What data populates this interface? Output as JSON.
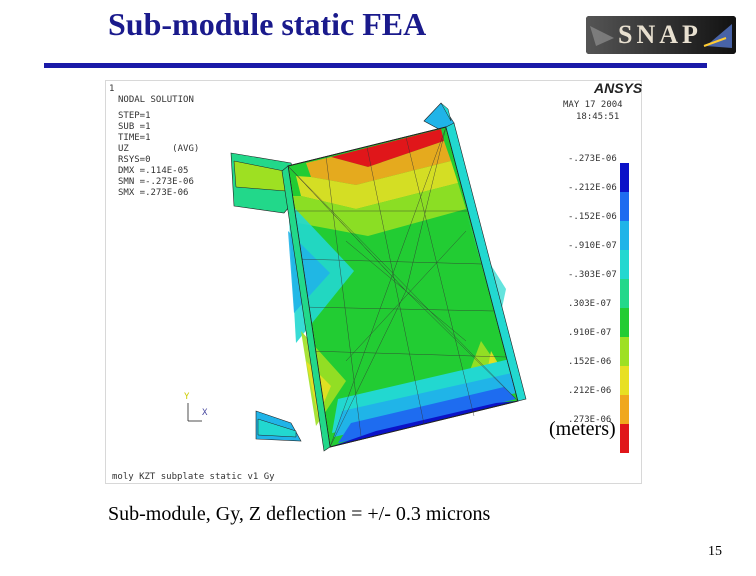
{
  "slide": {
    "title": "Sub-module static FEA",
    "caption": "Sub-module, Gy, Z deflection = +/- 0.3 microns",
    "page_number": "15",
    "units_label": "(meters)"
  },
  "logo": {
    "text": "SNAP"
  },
  "ansys": {
    "window_number": "1",
    "brand": "ANSYS",
    "header_lines": [
      "NODAL SOLUTION",
      "STEP=1",
      "SUB =1",
      "TIME=1",
      "UZ        (AVG)",
      "RSYS=0",
      "DMX =.114E-05",
      "SMN =-.273E-06",
      "SMX =.273E-06"
    ],
    "date": "MAY 17 2004",
    "time": "18:45:51",
    "model_title": "moly KZT subplate static v1 Gy",
    "axis_y": "Y",
    "axis_x": "X",
    "legend": [
      {
        "label": "-.273E-06",
        "color": "#0b12c8"
      },
      {
        "label": "-.212E-06",
        "color": "#1e6cf0"
      },
      {
        "label": "-.152E-06",
        "color": "#20b4e8"
      },
      {
        "label": "-.910E-07",
        "color": "#22d8d0"
      },
      {
        "label": "-.303E-07",
        "color": "#22d88a"
      },
      {
        "label": ".303E-07",
        "color": "#22cc33"
      },
      {
        "label": ".910E-07",
        "color": "#9ee022"
      },
      {
        "label": ".152E-06",
        "color": "#e8e022"
      },
      {
        "label": ".212E-06",
        "color": "#f0a81e"
      },
      {
        "label": ".273E-06",
        "color": "#e0161a"
      }
    ]
  }
}
